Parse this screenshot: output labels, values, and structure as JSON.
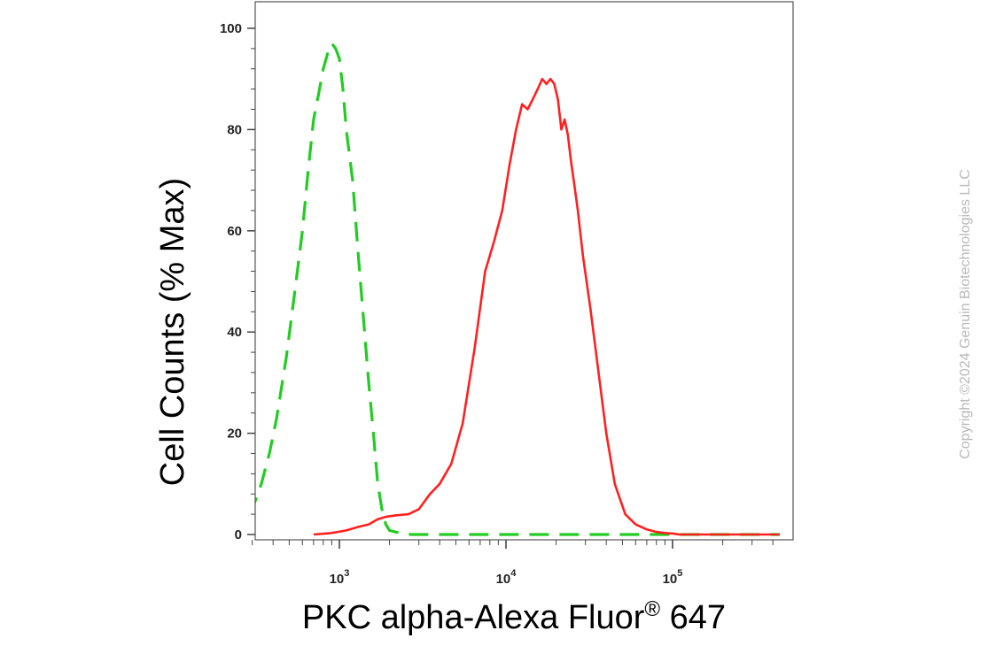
{
  "chart_data": {
    "type": "line",
    "title": "",
    "xlabel": "PKC alpha-Alexa Fluor",
    "xlabel_superscript": "®",
    "xlabel_suffix": " 647",
    "ylabel": "Cell Counts (% Max)",
    "x_scale": "log",
    "xlim": [
      260,
      450000
    ],
    "ylim": [
      0,
      105
    ],
    "y_ticks": [
      0,
      20,
      40,
      60,
      80,
      100
    ],
    "x_ticks": [
      {
        "value": 1000,
        "base": "10",
        "exp": "3"
      },
      {
        "value": 10000,
        "base": "10",
        "exp": "4"
      },
      {
        "value": 100000,
        "base": "10",
        "exp": "5"
      }
    ],
    "grid": false,
    "legend": false,
    "series": [
      {
        "color": "#22cc22",
        "style": "dashed",
        "x": [
          270,
          275,
          300,
          340,
          380,
          420,
          480,
          540,
          600,
          650,
          700,
          750,
          800,
          850,
          900,
          950,
          1000,
          1050,
          1100,
          1200,
          1300,
          1400,
          1500,
          1600,
          1700,
          1800,
          1900,
          2000,
          2300,
          2700,
          5000,
          10000,
          50000,
          100000,
          440000
        ],
        "y": [
          30,
          10,
          5,
          10,
          16,
          23,
          35,
          48,
          60,
          72,
          82,
          87,
          92,
          95,
          97,
          96,
          94,
          88,
          80,
          70,
          55,
          42,
          30,
          20,
          10,
          5,
          2,
          0.8,
          0.3,
          0,
          0,
          0,
          0,
          0,
          0
        ]
      },
      {
        "color": "#ff2020",
        "style": "solid",
        "x": [
          700,
          900,
          1100,
          1300,
          1500,
          1700,
          1900,
          2200,
          2600,
          3000,
          3500,
          4000,
          4700,
          5500,
          6500,
          7500,
          8500,
          9500,
          10500,
          11500,
          12500,
          13500,
          14500,
          15500,
          16500,
          17500,
          18500,
          19500,
          20500,
          21500,
          22500,
          23500,
          24500,
          25500,
          27000,
          29000,
          32000,
          35000,
          40000,
          45000,
          52000,
          60000,
          70000,
          80000,
          90000,
          100000,
          110000,
          130000,
          200000,
          440000
        ],
        "y": [
          0,
          0.3,
          0.8,
          1.5,
          2,
          3,
          3.5,
          3.8,
          4,
          5,
          8,
          10,
          14,
          22,
          37,
          52,
          58,
          64,
          73,
          80,
          85,
          84,
          86,
          88,
          90,
          89,
          90,
          89,
          86,
          80,
          82,
          79,
          74,
          70,
          64,
          55,
          45,
          35,
          20,
          10,
          4,
          2,
          1,
          0.5,
          0.3,
          0.2,
          0,
          0,
          0,
          0
        ]
      }
    ]
  },
  "copyright": "Copyright ©2024 Genuin Biotechnologies LLC"
}
